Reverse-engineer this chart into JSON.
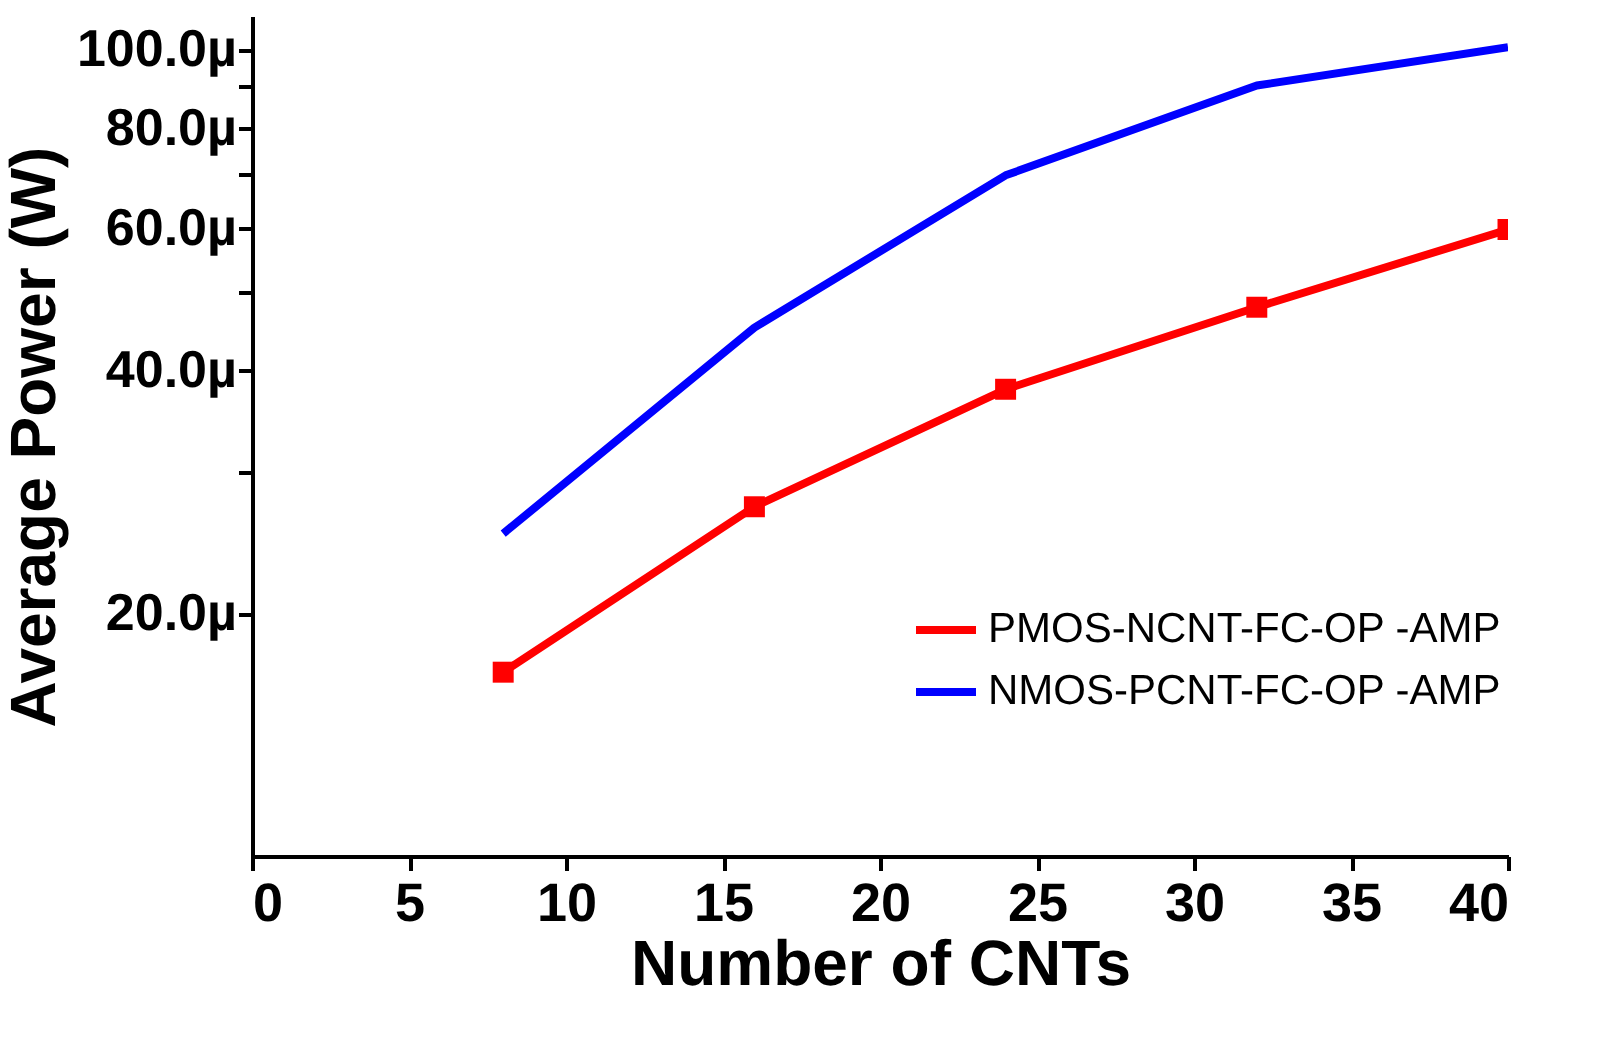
{
  "chart_data": {
    "type": "line",
    "xlabel": "Number of CNTs",
    "ylabel": "Average Power (W)",
    "x": [
      8,
      16,
      24,
      32,
      40
    ],
    "series": [
      {
        "name": "PMOS-NCNT-FC-OP -AMP",
        "color": "#ff0000",
        "marker": "square",
        "values": [
          16.9,
          27.1,
          37.9,
          47.9,
          59.8
        ]
      },
      {
        "name": "NMOS-PCNT-FC-OP -AMP",
        "color": "#0000ff",
        "marker": "none",
        "values": [
          25.1,
          45.2,
          69.8,
          90.2,
          100.6
        ]
      }
    ],
    "log": "y",
    "xlim": [
      0,
      40
    ],
    "xticks": [
      0,
      5,
      10,
      15,
      20,
      25,
      30,
      35,
      40
    ],
    "ylim": [
      10,
      110
    ],
    "yticks": [
      {
        "value": 20,
        "label": "20.0µ"
      },
      {
        "value": 30,
        "label": null
      },
      {
        "value": 40,
        "label": "40.0µ"
      },
      {
        "value": 50,
        "label": null
      },
      {
        "value": 60,
        "label": "60.0µ"
      },
      {
        "value": 70,
        "label": null
      },
      {
        "value": 80,
        "label": "80.0µ"
      },
      {
        "value": 90,
        "label": null
      },
      {
        "value": 100,
        "label": "100.0µ"
      }
    ],
    "grid": false,
    "legend": "bottom right"
  }
}
